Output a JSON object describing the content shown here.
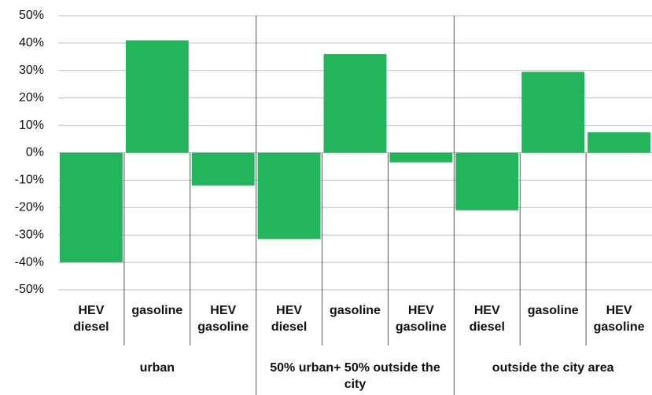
{
  "chart_data": {
    "type": "bar",
    "categories": [
      "HEV diesel",
      "gasoline",
      "HEV gasoline",
      "HEV diesel",
      "gasoline",
      "HEV gasoline",
      "HEV diesel",
      "gasoline",
      "HEV gasoline"
    ],
    "group_labels": [
      "urban",
      "50% urban+ 50% outside the city",
      "outside the city area"
    ],
    "values": [
      -40,
      41,
      -12,
      -31.5,
      36,
      -3.5,
      -21,
      29.5,
      7.5
    ],
    "color": "#23b55b",
    "ylim": [
      -50,
      50
    ],
    "yticks": [
      {
        "value": -50,
        "label": "-50%"
      },
      {
        "value": -40,
        "label": "-40%"
      },
      {
        "value": -30,
        "label": "-30%"
      },
      {
        "value": -20,
        "label": "-20%"
      },
      {
        "value": -10,
        "label": "-10%"
      },
      {
        "value": 0,
        "label": "0%"
      },
      {
        "value": 10,
        "label": "10%"
      },
      {
        "value": 20,
        "label": "20%"
      },
      {
        "value": 30,
        "label": "30%"
      },
      {
        "value": 40,
        "label": "40%"
      },
      {
        "value": 50,
        "label": "50%"
      }
    ],
    "grid": true
  }
}
